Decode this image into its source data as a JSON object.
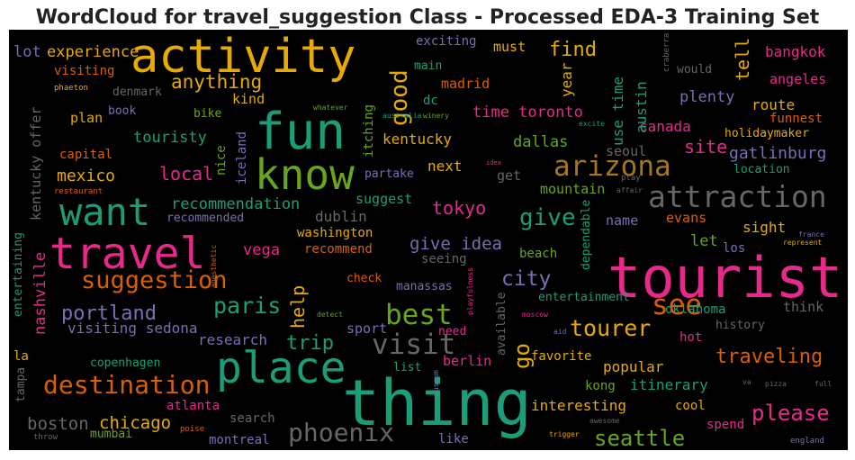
{
  "chart_data": {
    "type": "wordcloud",
    "title": "WordCloud for travel_suggestion Class - Processed EDA-3 Training Set",
    "background": "#000000",
    "words": [
      {
        "text": "activity",
        "color": "#e6ab02"
      },
      {
        "text": "fun",
        "color": "#1b9e77"
      },
      {
        "text": "know",
        "color": "#66a61e"
      },
      {
        "text": "want",
        "color": "#1b9e77"
      },
      {
        "text": "travel",
        "color": "#e7298a"
      },
      {
        "text": "place",
        "color": "#1b9e77"
      },
      {
        "text": "thing",
        "color": "#1b9e77"
      },
      {
        "text": "tourist",
        "color": "#e7298a"
      },
      {
        "text": "attraction",
        "color": "#666666"
      },
      {
        "text": "arizona",
        "color": "#a6761d"
      },
      {
        "text": "destination",
        "color": "#d95f02"
      },
      {
        "text": "suggestion",
        "color": "#d95f02"
      },
      {
        "text": "phoenix",
        "color": "#666666"
      },
      {
        "text": "visit",
        "color": "#666666"
      },
      {
        "text": "best",
        "color": "#66a61e"
      },
      {
        "text": "see",
        "color": "#d95f02"
      },
      {
        "text": "paris",
        "color": "#1b9e77"
      },
      {
        "text": "portland",
        "color": "#7570b3"
      },
      {
        "text": "tourer",
        "color": "#e6ab02"
      },
      {
        "text": "please",
        "color": "#e7298a"
      },
      {
        "text": "seattle",
        "color": "#66a61e"
      },
      {
        "text": "chicago",
        "color": "#e6ab02"
      },
      {
        "text": "boston",
        "color": "#666666"
      },
      {
        "text": "traveling",
        "color": "#d95f02"
      },
      {
        "text": "give",
        "color": "#1b9e77"
      },
      {
        "text": "good",
        "color": "#e6ab02"
      },
      {
        "text": "city",
        "color": "#7570b3"
      },
      {
        "text": "go",
        "color": "#e6ab02"
      },
      {
        "text": "help",
        "color": "#e6ab02"
      },
      {
        "text": "trip",
        "color": "#1b9e77"
      },
      {
        "text": "local",
        "color": "#e7298a"
      },
      {
        "text": "anything",
        "color": "#e6ab02"
      },
      {
        "text": "experience",
        "color": "#e6ab02"
      },
      {
        "text": "find",
        "color": "#e6ab02"
      },
      {
        "text": "tell",
        "color": "#e6ab02"
      },
      {
        "text": "tokyo",
        "color": "#e7298a"
      },
      {
        "text": "give idea",
        "color": "#7570b3"
      },
      {
        "text": "recommendation",
        "color": "#1b9e77"
      },
      {
        "text": "mexico",
        "color": "#e6ab02"
      },
      {
        "text": "touristy",
        "color": "#1b9e77"
      },
      {
        "text": "kentucky",
        "color": "#e6ab02"
      },
      {
        "text": "time toronto",
        "color": "#e7298a"
      },
      {
        "text": "dallas",
        "color": "#66a61e"
      },
      {
        "text": "site",
        "color": "#e7298a"
      },
      {
        "text": "gatlinburg",
        "color": "#7570b3"
      },
      {
        "text": "canada",
        "color": "#e7298a"
      },
      {
        "text": "plenty",
        "color": "#7570b3"
      },
      {
        "text": "route",
        "color": "#e6ab02"
      },
      {
        "text": "bangkok",
        "color": "#e7298a"
      },
      {
        "text": "angeles",
        "color": "#e7298a"
      },
      {
        "text": "funnest",
        "color": "#d95f02"
      },
      {
        "text": "holidaymaker",
        "color": "#e6ab02"
      },
      {
        "text": "location",
        "color": "#1b9e77"
      },
      {
        "text": "would",
        "color": "#666666"
      },
      {
        "text": "craberra",
        "color": "#666666"
      },
      {
        "text": "austin",
        "color": "#1b9e77"
      },
      {
        "text": "use time",
        "color": "#1b9e77"
      },
      {
        "text": "year",
        "color": "#e6ab02"
      },
      {
        "text": "must",
        "color": "#e6ab02"
      },
      {
        "text": "exciting",
        "color": "#7570b3"
      },
      {
        "text": "main",
        "color": "#1b9e77"
      },
      {
        "text": "madrid",
        "color": "#d95f02"
      },
      {
        "text": "dc",
        "color": "#1b9e77"
      },
      {
        "text": "kind",
        "color": "#e6ab02"
      },
      {
        "text": "plan",
        "color": "#e6ab02"
      },
      {
        "text": "book",
        "color": "#7570b3"
      },
      {
        "text": "denmark",
        "color": "#666666"
      },
      {
        "text": "visiting",
        "color": "#d95f02"
      },
      {
        "text": "lot",
        "color": "#7570b3"
      },
      {
        "text": "phaeton",
        "color": "#e6ab02"
      },
      {
        "text": "kentucky offer",
        "color": "#666666"
      },
      {
        "text": "capital",
        "color": "#d95f02"
      },
      {
        "text": "restaurant",
        "color": "#d95f02"
      },
      {
        "text": "bike",
        "color": "#66a61e"
      },
      {
        "text": "whatever",
        "color": "#66a61e"
      },
      {
        "text": "nice",
        "color": "#66a61e"
      },
      {
        "text": "iceland",
        "color": "#7570b3"
      },
      {
        "text": "itching",
        "color": "#66a61e"
      },
      {
        "text": "australia",
        "color": "#1b9e77"
      },
      {
        "text": "winery",
        "color": "#66a61e"
      },
      {
        "text": "excite",
        "color": "#1b9e77"
      },
      {
        "text": "next",
        "color": "#e6ab02"
      },
      {
        "text": "partake",
        "color": "#7570b3"
      },
      {
        "text": "idea",
        "color": "#e7298a"
      },
      {
        "text": "get",
        "color": "#666666"
      },
      {
        "text": "suggest",
        "color": "#1b9e77"
      },
      {
        "text": "mountain",
        "color": "#66a61e"
      },
      {
        "text": "seoul",
        "color": "#666666"
      },
      {
        "text": "play",
        "color": "#666666"
      },
      {
        "text": "affair",
        "color": "#666666"
      },
      {
        "text": "dependable",
        "color": "#1b9e77"
      },
      {
        "text": "name",
        "color": "#7570b3"
      },
      {
        "text": "evans",
        "color": "#d95f02"
      },
      {
        "text": "sight",
        "color": "#e6ab02"
      },
      {
        "text": "france",
        "color": "#7570b3"
      },
      {
        "text": "represent",
        "color": "#e6ab02"
      },
      {
        "text": "let",
        "color": "#66a61e"
      },
      {
        "text": "los",
        "color": "#7570b3"
      },
      {
        "text": "dublin",
        "color": "#666666"
      },
      {
        "text": "washington",
        "color": "#e6ab02"
      },
      {
        "text": "recommend",
        "color": "#d95f02"
      },
      {
        "text": "vega",
        "color": "#e7298a"
      },
      {
        "text": "recommended",
        "color": "#7570b3"
      },
      {
        "text": "anesthetic",
        "color": "#d95f02"
      },
      {
        "text": "nashville",
        "color": "#e7298a"
      },
      {
        "text": "entertaining",
        "color": "#1b9e77"
      },
      {
        "text": "seeing",
        "color": "#666666"
      },
      {
        "text": "beach",
        "color": "#66a61e"
      },
      {
        "text": "check",
        "color": "#d95f02"
      },
      {
        "text": "manassas",
        "color": "#7570b3"
      },
      {
        "text": "playfulness",
        "color": "#e7298a"
      },
      {
        "text": "entertainment",
        "color": "#1b9e77"
      },
      {
        "text": "oklahoma",
        "color": "#1b9e77"
      },
      {
        "text": "think",
        "color": "#666666"
      },
      {
        "text": "detect",
        "color": "#66a61e"
      },
      {
        "text": "available",
        "color": "#666666"
      },
      {
        "text": "moscow",
        "color": "#e7298a"
      },
      {
        "text": "aid",
        "color": "#7570b3"
      },
      {
        "text": "history",
        "color": "#666666"
      },
      {
        "text": "hot",
        "color": "#e7298a"
      },
      {
        "text": "visiting sedona",
        "color": "#7570b3"
      },
      {
        "text": "research",
        "color": "#7570b3"
      },
      {
        "text": "sport",
        "color": "#7570b3"
      },
      {
        "text": "need",
        "color": "#e7298a"
      },
      {
        "text": "berlin",
        "color": "#e7298a"
      },
      {
        "text": "favorite",
        "color": "#e6ab02"
      },
      {
        "text": "popular",
        "color": "#e6ab02"
      },
      {
        "text": "museum",
        "color": "#7570b3"
      },
      {
        "text": "list",
        "color": "#1b9e77"
      },
      {
        "text": "interesting",
        "color": "#e6ab02"
      },
      {
        "text": "kong",
        "color": "#66a61e"
      },
      {
        "text": "itinerary",
        "color": "#1b9e77"
      },
      {
        "text": "cool",
        "color": "#e6ab02"
      },
      {
        "text": "va",
        "color": "#666666"
      },
      {
        "text": "pizza",
        "color": "#666666"
      },
      {
        "text": "full",
        "color": "#666666"
      },
      {
        "text": "spend",
        "color": "#e7298a"
      },
      {
        "text": "awesome",
        "color": "#666666"
      },
      {
        "text": "trigger",
        "color": "#e6ab02"
      },
      {
        "text": "england",
        "color": "#7570b3"
      },
      {
        "text": "copenhagen",
        "color": "#1b9e77"
      },
      {
        "text": "atlanta",
        "color": "#e7298a"
      },
      {
        "text": "search",
        "color": "#666666"
      },
      {
        "text": "poise",
        "color": "#d95f02"
      },
      {
        "text": "montreal",
        "color": "#7570b3"
      },
      {
        "text": "like",
        "color": "#7570b3"
      },
      {
        "text": "mumbai",
        "color": "#66a61e"
      },
      {
        "text": "throw",
        "color": "#666666"
      },
      {
        "text": "la",
        "color": "#e6ab02"
      },
      {
        "text": "tampa",
        "color": "#666666"
      }
    ]
  }
}
